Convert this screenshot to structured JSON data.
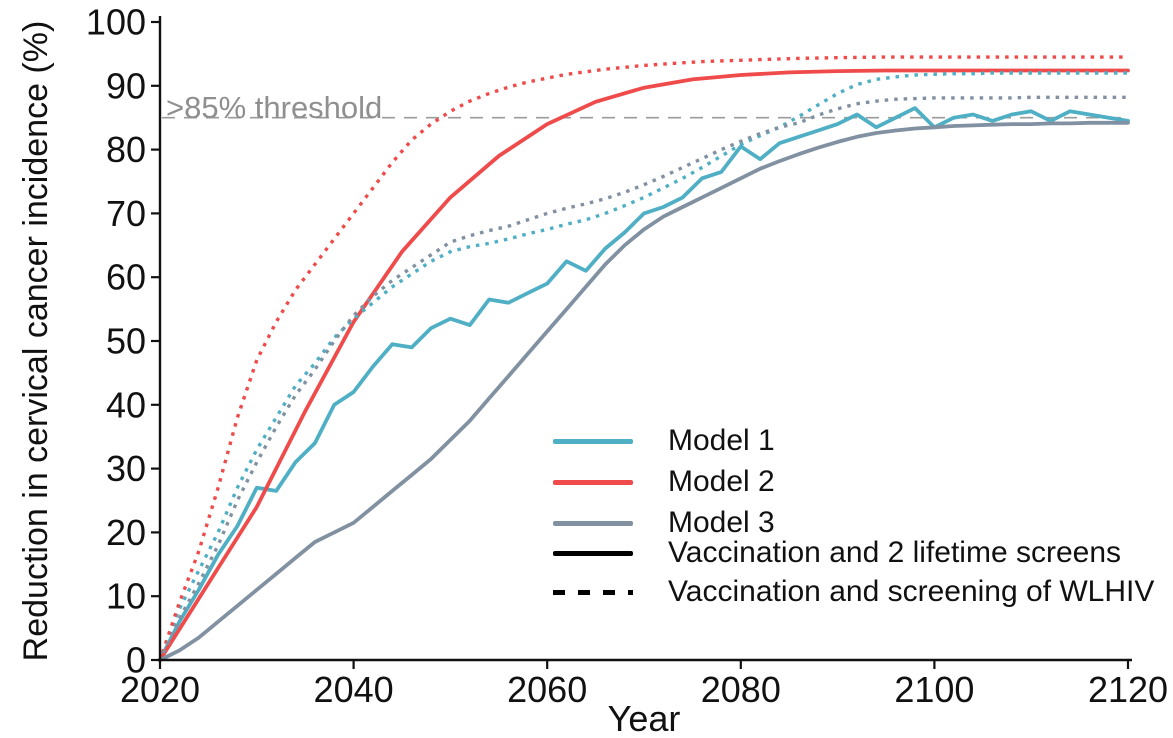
{
  "chart_data": {
    "type": "line",
    "title": "",
    "xlabel": "Year",
    "ylabel": "Reduction in cervical cancer incidence (%)",
    "xlim": [
      2020,
      2120
    ],
    "ylim": [
      0,
      100
    ],
    "x_ticks": [
      2020,
      2040,
      2060,
      2080,
      2100,
      2120
    ],
    "y_ticks": [
      0,
      10,
      20,
      30,
      40,
      50,
      60,
      70,
      80,
      90,
      100
    ],
    "grid": false,
    "background": "#ffffff",
    "axis_color": "#111111",
    "threshold": {
      "value": 85,
      "label": ">85% threshold",
      "color": "#9b9b9b",
      "style": "dashed"
    },
    "legend": {
      "position": "inside-bottom-right",
      "items": [
        {
          "label": "Model 1",
          "line_style": "solid",
          "color": "#4FAFC4"
        },
        {
          "label": "Model 2",
          "line_style": "solid",
          "color": "#F04B4B"
        },
        {
          "label": "Model 3",
          "line_style": "solid",
          "color": "#8191A2"
        },
        {
          "label": "Vaccination and 2 lifetime screens",
          "line_style": "solid",
          "color": "#000000"
        },
        {
          "label": "Vaccination and screening of WLHIV",
          "line_style": "dotted",
          "color": "#000000"
        }
      ]
    },
    "series": [
      {
        "name": "Model 1 - Vaccination and 2 lifetime screens",
        "model": "Model 1",
        "scenario": "Vaccination and 2 lifetime screens",
        "style": "solid",
        "color": "#4FAFC4",
        "x_start": 2020,
        "x_step": 2,
        "y": [
          0,
          6,
          11,
          16.5,
          21,
          27,
          26.5,
          31,
          34,
          40,
          42,
          46,
          49.5,
          49,
          52,
          53.5,
          52.5,
          56.5,
          56,
          57.5,
          59,
          62.5,
          61,
          64.5,
          67,
          70,
          71,
          72.5,
          75.5,
          76.5,
          80.5,
          78.5,
          81,
          82,
          83,
          84,
          85.5,
          83.5,
          85,
          86.5,
          83.5,
          85,
          85.5,
          84.5,
          85.5,
          86,
          84.5,
          86,
          85.5,
          85,
          84.5
        ]
      },
      {
        "name": "Model 2 - Vaccination and 2 lifetime screens",
        "model": "Model 2",
        "scenario": "Vaccination and 2 lifetime screens",
        "style": "solid",
        "color": "#F04B4B",
        "x_start": 2020,
        "x_step": 5,
        "y": [
          0,
          12,
          24,
          39,
          53,
          64,
          72.5,
          79,
          84,
          87.5,
          89.7,
          91,
          91.7,
          92.1,
          92.3,
          92.4,
          92.4,
          92.4,
          92.4,
          92.4,
          92.4
        ]
      },
      {
        "name": "Model 3 - Vaccination and 2 lifetime screens",
        "model": "Model 3",
        "scenario": "Vaccination and 2 lifetime screens",
        "style": "solid",
        "color": "#8191A2",
        "x_start": 2020,
        "x_step": 2,
        "y": [
          0,
          1.5,
          3.5,
          6,
          8.5,
          11,
          13.5,
          16,
          18.5,
          20,
          21.5,
          24,
          26.5,
          29,
          31.5,
          34.5,
          37.5,
          41,
          44.5,
          48,
          51.5,
          55,
          58.5,
          62,
          65,
          67.5,
          69.5,
          71,
          72.5,
          74,
          75.5,
          77,
          78.2,
          79.3,
          80.3,
          81.2,
          82,
          82.6,
          83,
          83.3,
          83.5,
          83.7,
          83.8,
          83.9,
          84,
          84,
          84.1,
          84.1,
          84.2,
          84.2,
          84.2
        ]
      },
      {
        "name": "Model 1 - Vaccination and screening of WLHIV",
        "model": "Model 1",
        "scenario": "Vaccination and screening of WLHIV",
        "style": "dotted",
        "color": "#4FAFC4",
        "x_start": 2020,
        "x_step": 2,
        "y": [
          0,
          8,
          14,
          20,
          27,
          33,
          38,
          43,
          46.5,
          50.5,
          53.5,
          56,
          58.5,
          60.5,
          62.5,
          64,
          64.8,
          65.3,
          66,
          66.8,
          67.5,
          68.3,
          69,
          70,
          71.2,
          72.5,
          74,
          75.5,
          77.2,
          79,
          80.8,
          82.2,
          83.5,
          85.2,
          87,
          88.8,
          90.2,
          91,
          91.4,
          91.7,
          91.8,
          91.9,
          91.9,
          92,
          92,
          92,
          92,
          92,
          92,
          92,
          92
        ]
      },
      {
        "name": "Model 2 - Vaccination and screening of WLHIV",
        "model": "Model 2",
        "scenario": "Vaccination and screening of WLHIV",
        "style": "dotted",
        "color": "#F04B4B",
        "x_start": 2020,
        "x_step": 2,
        "y": [
          0,
          9,
          17,
          27,
          38,
          47,
          53,
          58,
          62,
          66,
          70,
          74,
          78,
          81.5,
          84,
          86,
          87.6,
          88.8,
          89.8,
          90.6,
          91.2,
          91.8,
          92.2,
          92.6,
          92.9,
          93.2,
          93.4,
          93.6,
          93.8,
          93.9,
          94,
          94.1,
          94.2,
          94.3,
          94.35,
          94.4,
          94.45,
          94.5,
          94.5,
          94.5,
          94.5,
          94.5,
          94.5,
          94.5,
          94.5,
          94.5,
          94.5,
          94.5,
          94.5,
          94.5,
          94.5
        ]
      },
      {
        "name": "Model 3 - Vaccination and screening of WLHIV",
        "model": "Model 3",
        "scenario": "Vaccination and screening of WLHIV",
        "style": "dotted",
        "color": "#8191A2",
        "x_start": 2020,
        "x_step": 2,
        "y": [
          0,
          6.5,
          12,
          18,
          25,
          31,
          36.5,
          41.5,
          45.5,
          50,
          54,
          57,
          59.5,
          61.5,
          63.5,
          65.5,
          66.5,
          67.3,
          68,
          69,
          70,
          70.8,
          71.5,
          72.3,
          73.3,
          74.5,
          75.8,
          77.2,
          78.6,
          80,
          81.3,
          82.5,
          83.5,
          84.2,
          85.4,
          86.4,
          87.2,
          87.6,
          87.9,
          88,
          88.1,
          88.1,
          88.1,
          88.1,
          88.1,
          88.2,
          88.2,
          88.2,
          88.2,
          88.2,
          88.2
        ]
      }
    ]
  }
}
